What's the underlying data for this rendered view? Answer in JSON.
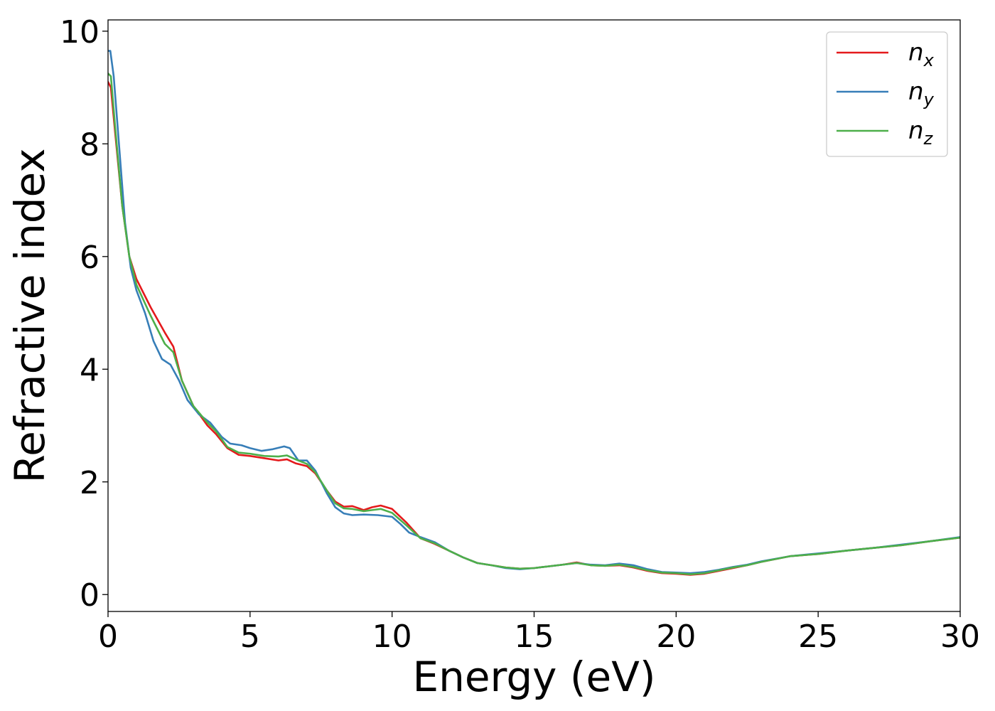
{
  "chart_data": {
    "type": "line",
    "xlabel": "Energy (eV)",
    "ylabel": "Refractive index",
    "xlim": [
      0,
      30
    ],
    "ylim": [
      -0.3,
      10.2
    ],
    "xticks": [
      "0",
      "5",
      "10",
      "15",
      "20",
      "25",
      "30"
    ],
    "yticks": [
      "0",
      "2",
      "4",
      "6",
      "8",
      "10"
    ],
    "grid": false,
    "legend_position": "top-right",
    "series": [
      {
        "name": "n_x",
        "label_base": "n",
        "label_sub": "x",
        "color": "#e41a1c",
        "points": [
          [
            0,
            9.1
          ],
          [
            0.1,
            9.0
          ],
          [
            0.25,
            8.2
          ],
          [
            0.5,
            6.9
          ],
          [
            0.75,
            6.0
          ],
          [
            1.0,
            5.6
          ],
          [
            1.5,
            5.1
          ],
          [
            2.0,
            4.65
          ],
          [
            2.3,
            4.4
          ],
          [
            2.6,
            3.8
          ],
          [
            3.0,
            3.35
          ],
          [
            3.5,
            3.0
          ],
          [
            3.8,
            2.85
          ],
          [
            4.2,
            2.6
          ],
          [
            4.6,
            2.48
          ],
          [
            5.0,
            2.46
          ],
          [
            5.5,
            2.42
          ],
          [
            6.0,
            2.38
          ],
          [
            6.3,
            2.4
          ],
          [
            6.6,
            2.33
          ],
          [
            7.0,
            2.28
          ],
          [
            7.3,
            2.15
          ],
          [
            7.7,
            1.85
          ],
          [
            8.0,
            1.65
          ],
          [
            8.3,
            1.56
          ],
          [
            8.6,
            1.57
          ],
          [
            9.0,
            1.5
          ],
          [
            9.3,
            1.55
          ],
          [
            9.6,
            1.58
          ],
          [
            10.0,
            1.52
          ],
          [
            10.5,
            1.28
          ],
          [
            11.0,
            1.0
          ],
          [
            11.5,
            0.9
          ],
          [
            12.0,
            0.78
          ],
          [
            12.5,
            0.66
          ],
          [
            13.0,
            0.56
          ],
          [
            13.5,
            0.52
          ],
          [
            14.0,
            0.48
          ],
          [
            14.5,
            0.46
          ],
          [
            15.0,
            0.47
          ],
          [
            15.5,
            0.5
          ],
          [
            16.0,
            0.53
          ],
          [
            16.5,
            0.57
          ],
          [
            17.0,
            0.52
          ],
          [
            17.5,
            0.51
          ],
          [
            18.0,
            0.52
          ],
          [
            18.5,
            0.48
          ],
          [
            19.0,
            0.42
          ],
          [
            19.5,
            0.38
          ],
          [
            20.0,
            0.37
          ],
          [
            20.5,
            0.35
          ],
          [
            21.0,
            0.37
          ],
          [
            21.5,
            0.42
          ],
          [
            22.0,
            0.47
          ],
          [
            22.5,
            0.52
          ],
          [
            23.0,
            0.58
          ],
          [
            24.0,
            0.68
          ],
          [
            25.0,
            0.72
          ],
          [
            26.0,
            0.78
          ],
          [
            27.0,
            0.83
          ],
          [
            28.0,
            0.88
          ],
          [
            29.0,
            0.95
          ],
          [
            30.0,
            1.01
          ]
        ]
      },
      {
        "name": "n_y",
        "label_base": "n",
        "label_sub": "y",
        "color": "#377eb8",
        "points": [
          [
            0,
            9.65
          ],
          [
            0.08,
            9.65
          ],
          [
            0.2,
            9.2
          ],
          [
            0.4,
            7.9
          ],
          [
            0.6,
            6.6
          ],
          [
            0.8,
            5.8
          ],
          [
            1.0,
            5.4
          ],
          [
            1.3,
            5.0
          ],
          [
            1.6,
            4.5
          ],
          [
            1.9,
            4.18
          ],
          [
            2.2,
            4.08
          ],
          [
            2.5,
            3.8
          ],
          [
            2.8,
            3.45
          ],
          [
            3.2,
            3.2
          ],
          [
            3.6,
            3.05
          ],
          [
            4.0,
            2.8
          ],
          [
            4.3,
            2.68
          ],
          [
            4.7,
            2.65
          ],
          [
            5.0,
            2.6
          ],
          [
            5.4,
            2.55
          ],
          [
            5.8,
            2.58
          ],
          [
            6.2,
            2.63
          ],
          [
            6.4,
            2.6
          ],
          [
            6.7,
            2.38
          ],
          [
            7.0,
            2.38
          ],
          [
            7.3,
            2.2
          ],
          [
            7.7,
            1.8
          ],
          [
            8.0,
            1.55
          ],
          [
            8.3,
            1.44
          ],
          [
            8.6,
            1.41
          ],
          [
            9.0,
            1.42
          ],
          [
            9.5,
            1.41
          ],
          [
            10.0,
            1.38
          ],
          [
            10.3,
            1.25
          ],
          [
            10.6,
            1.1
          ],
          [
            11.0,
            1.02
          ],
          [
            11.5,
            0.93
          ],
          [
            12.0,
            0.78
          ],
          [
            12.5,
            0.66
          ],
          [
            13.0,
            0.56
          ],
          [
            13.5,
            0.52
          ],
          [
            14.0,
            0.47
          ],
          [
            14.5,
            0.45
          ],
          [
            15.0,
            0.47
          ],
          [
            15.5,
            0.5
          ],
          [
            16.0,
            0.53
          ],
          [
            16.5,
            0.56
          ],
          [
            17.0,
            0.53
          ],
          [
            17.5,
            0.52
          ],
          [
            18.0,
            0.55
          ],
          [
            18.5,
            0.52
          ],
          [
            19.0,
            0.45
          ],
          [
            19.5,
            0.4
          ],
          [
            20.0,
            0.39
          ],
          [
            20.5,
            0.38
          ],
          [
            21.0,
            0.4
          ],
          [
            21.5,
            0.44
          ],
          [
            22.0,
            0.49
          ],
          [
            22.5,
            0.53
          ],
          [
            23.0,
            0.59
          ],
          [
            24.0,
            0.68
          ],
          [
            25.0,
            0.73
          ],
          [
            26.0,
            0.78
          ],
          [
            27.0,
            0.83
          ],
          [
            28.0,
            0.89
          ],
          [
            29.0,
            0.95
          ],
          [
            30.0,
            1.02
          ]
        ]
      },
      {
        "name": "n_z",
        "label_base": "n",
        "label_sub": "z",
        "color": "#4daf4a",
        "points": [
          [
            0,
            9.25
          ],
          [
            0.1,
            9.2
          ],
          [
            0.25,
            8.3
          ],
          [
            0.5,
            6.9
          ],
          [
            0.75,
            6.0
          ],
          [
            1.0,
            5.5
          ],
          [
            1.5,
            4.95
          ],
          [
            2.0,
            4.45
          ],
          [
            2.3,
            4.3
          ],
          [
            2.6,
            3.8
          ],
          [
            3.0,
            3.35
          ],
          [
            3.5,
            3.05
          ],
          [
            3.8,
            2.9
          ],
          [
            4.2,
            2.62
          ],
          [
            4.6,
            2.52
          ],
          [
            5.0,
            2.5
          ],
          [
            5.5,
            2.46
          ],
          [
            6.0,
            2.45
          ],
          [
            6.3,
            2.47
          ],
          [
            6.6,
            2.4
          ],
          [
            7.0,
            2.32
          ],
          [
            7.3,
            2.17
          ],
          [
            7.7,
            1.85
          ],
          [
            8.0,
            1.62
          ],
          [
            8.3,
            1.53
          ],
          [
            8.6,
            1.52
          ],
          [
            9.0,
            1.48
          ],
          [
            9.3,
            1.5
          ],
          [
            9.6,
            1.52
          ],
          [
            10.0,
            1.45
          ],
          [
            10.5,
            1.23
          ],
          [
            11.0,
            1.0
          ],
          [
            11.5,
            0.91
          ],
          [
            12.0,
            0.78
          ],
          [
            12.5,
            0.66
          ],
          [
            13.0,
            0.56
          ],
          [
            13.5,
            0.52
          ],
          [
            14.0,
            0.48
          ],
          [
            14.5,
            0.46
          ],
          [
            15.0,
            0.47
          ],
          [
            15.5,
            0.5
          ],
          [
            16.0,
            0.53
          ],
          [
            16.5,
            0.56
          ],
          [
            17.0,
            0.52
          ],
          [
            17.5,
            0.51
          ],
          [
            18.0,
            0.53
          ],
          [
            18.5,
            0.49
          ],
          [
            19.0,
            0.43
          ],
          [
            19.5,
            0.39
          ],
          [
            20.0,
            0.38
          ],
          [
            20.5,
            0.36
          ],
          [
            21.0,
            0.38
          ],
          [
            21.5,
            0.43
          ],
          [
            22.0,
            0.48
          ],
          [
            22.5,
            0.52
          ],
          [
            23.0,
            0.58
          ],
          [
            24.0,
            0.68
          ],
          [
            25.0,
            0.72
          ],
          [
            26.0,
            0.78
          ],
          [
            27.0,
            0.83
          ],
          [
            28.0,
            0.88
          ],
          [
            29.0,
            0.95
          ],
          [
            30.0,
            1.01
          ]
        ]
      }
    ]
  }
}
